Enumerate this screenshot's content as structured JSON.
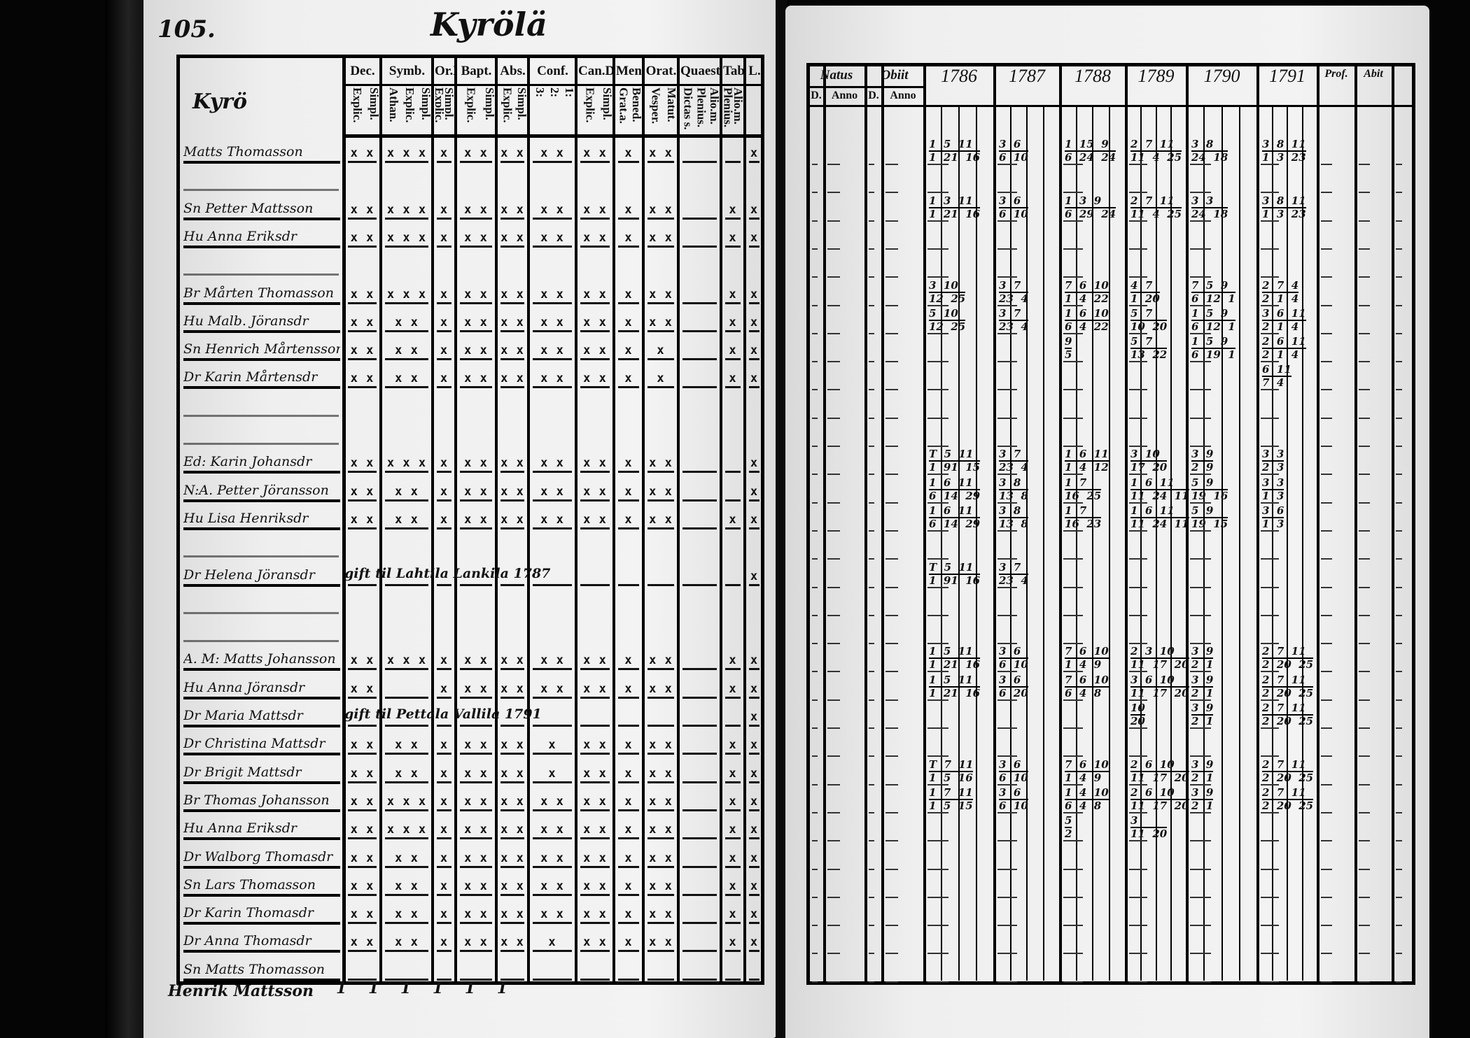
{
  "left_page": {
    "page_number": "105.",
    "title": "Kyrölä",
    "section_label": "Kyrö",
    "columns": [
      {
        "head": "Dec.",
        "sub": [
          "Explic.",
          "Simpl."
        ]
      },
      {
        "head": "Symb.",
        "sub": [
          "Athan.",
          "Explic.",
          "Simpl."
        ]
      },
      {
        "head": "Or.D",
        "sub": [
          "Explic.",
          "Simpl."
        ]
      },
      {
        "head": "Bapt.",
        "sub": [
          "Explic.",
          "Simpl."
        ]
      },
      {
        "head": "Abs.",
        "sub": [
          "Explic.",
          "Simpl."
        ]
      },
      {
        "head": "Conf.",
        "sub": [
          "3:",
          "2:",
          "1:"
        ]
      },
      {
        "head": "Can.D",
        "sub": [
          "Explic.",
          "Simpl."
        ]
      },
      {
        "head": "Mens.",
        "sub": [
          "Grat.a.",
          "Bened."
        ]
      },
      {
        "head": "Orat.",
        "sub": [
          "Vesper.",
          "Matut."
        ]
      },
      {
        "head": "Quaest.",
        "sub": [
          "Dictas s.",
          "Plenius.",
          "Alio.m."
        ]
      },
      {
        "head": "Tabe.",
        "sub": [
          "Plenius.",
          "Alio.m."
        ]
      },
      {
        "head": "L.",
        "sub": [
          ""
        ]
      }
    ],
    "rows": [
      {
        "row": 0,
        "name": "Matts Thomasson",
        "marks": "x x|x x x|x x|x x|x x|x x x|x x|x x|x x|||x"
      },
      {
        "row": 2,
        "name": "Sn Petter Mattsson",
        "marks": "x x|x x x|x x|x x|x x|x x x|x x|x x|x x||x|x"
      },
      {
        "row": 3,
        "name": "Hu Anna Eriksdr",
        "marks": "x x|x x x|x x|x x|x x|x x x|x x|x x|x x||x|x"
      },
      {
        "row": 5,
        "name": "Br Mårten Thomasson",
        "marks": "x x|x x x|x x|x x|x x|x x x|x x|x x|x x||x|x"
      },
      {
        "row": 6,
        "name": "Hu Malb. Jöransdr",
        "marks": "x x|x x|x x|x x|x x|x x|x x|x x|x x||x|x"
      },
      {
        "row": 7,
        "name": "Sn Henrich Mårtensson",
        "marks": "x x|x x|x x|x x|x x|x x x|x x|x x|x||x|x"
      },
      {
        "row": 8,
        "name": "Dr Karin Mårtensdr",
        "marks": "x x|x x|x x|x x|x x|x x x|x x|x x|x||x|x"
      },
      {
        "row": 11,
        "name": "Ed: Karin Johansdr",
        "marks": "x x|x x x|x x|x x|x x|x x x|x x|x x|x x|||x"
      },
      {
        "row": 12,
        "name": "N:A. Petter Jöransson",
        "marks": "x x|x x|x x|x x|x x|x x x|x x|x x|x x|||x"
      },
      {
        "row": 13,
        "name": "Hu Lisa Henriksdr",
        "marks": "x x|x x|x x|x x|x x|x x x|x x|x x|x x||x|x"
      },
      {
        "row": 15,
        "name": "Dr Helena Jöransdr",
        "marks": "|||||||||||x",
        "note": "gift til Lahtila Lankila 1787"
      },
      {
        "row": 18,
        "name": "A. M: Matts Johansson",
        "marks": "x x|x x x|x x|x x|x x|x x x|x x|x x|x x||x|x"
      },
      {
        "row": 19,
        "name": "Hu Anna Jöransdr",
        "marks": "x x||x x|x x|x x|x x x|x x|x x|x x||x|x"
      },
      {
        "row": 20,
        "name": "Dr Maria Mattsdr",
        "marks": "|||||||||||x",
        "note": "gift til Pettala Vallila 1791"
      },
      {
        "row": 21,
        "name": "Dr Christina Mattsdr",
        "marks": "x x|x x|x x|x x|x x|x|x x|x x|x x||x|x"
      },
      {
        "row": 22,
        "name": "Dr Brigit Mattsdr",
        "marks": "x x|x x|x x|x x|x x|x|x x|x x|x x||x|x"
      },
      {
        "row": 23,
        "name": "Br Thomas Johansson",
        "marks": "x x|x x x|x x|x x|x x|x x x|x x|x x|x x||x|x"
      },
      {
        "row": 24,
        "name": "Hu Anna Eriksdr",
        "marks": "x x|x x x|x x|x x|x x|x x x|x x|x x|x x||x|x"
      },
      {
        "row": 25,
        "name": "Dr Walborg Thomasdr",
        "marks": "x x|x x|x x|x x|x x|x x|x x|x x|x x||x|x"
      },
      {
        "row": 26,
        "name": "Sn Lars Thomasson",
        "marks": "x x|x x|x x|x x|x x|x x|x x|x x|x x||x|x"
      },
      {
        "row": 27,
        "name": "Dr Karin Thomasdr",
        "marks": "x x|x x|x x|x x|x x|x x x|x x|x x|x x||x|x"
      },
      {
        "row": 28,
        "name": "Dr Anna Thomasdr",
        "marks": "x x|x x|x x|x x|x x|x|x x|x x|x x||x|x"
      },
      {
        "row": 29,
        "name": "Sn Matts Thomasson",
        "marks": "|||||||||||"
      }
    ],
    "footer_name": "Henrik Mattsson",
    "footer_marks": "1    1    1    1    1    1"
  },
  "right_page": {
    "headers": {
      "natus": "Natus",
      "obiit": "Obiit",
      "d": "D.",
      "anno": "Anno",
      "years": [
        "1786",
        "1787",
        "1788",
        "1789",
        "1790",
        "1791"
      ],
      "prof": "Prof.",
      "abit": "Abit"
    },
    "rows": [
      {
        "row": 0,
        "cells": [
          "1 5 11\n1 21 16",
          "3 6\n6 10",
          "1 15 9\n6 24 24",
          "2 7 11\n11 4 25",
          "3 8\n24 18",
          "3 8 11\n1 3 23"
        ]
      },
      {
        "row": 2,
        "cells": [
          "1 3 11\n1 21 16",
          "3 6\n6 10",
          "1 3 9\n6 29 24",
          "2 7 11\n11 4 25",
          "3 3\n24 18",
          "3 8 11\n1 3 23"
        ]
      },
      {
        "row": 5,
        "cells": [
          "3 10\n12 25",
          "3 7\n23 4",
          "7 6 10\n1 4 22",
          "4 7\n1 20",
          "7 5 9\n6 12 1",
          "2 7 4\n2 1 4"
        ]
      },
      {
        "row": 6,
        "cells": [
          "5 10\n12 25",
          "3 7\n23 4",
          "1 6 10\n6 4 22",
          "5 7\n10 20",
          "1 5 9\n6 12 1",
          "3 6 11\n2 1 4"
        ]
      },
      {
        "row": 7,
        "cells": [
          "",
          "",
          "9\n5",
          "5 7\n13 22",
          "1 5 9\n6 19 1",
          "2 6 11\n2 1 4"
        ]
      },
      {
        "row": 8,
        "cells": [
          "",
          "",
          "",
          "",
          "",
          "6 11\n7 4"
        ]
      },
      {
        "row": 11,
        "cells": [
          "T 5 11\n1 91 15",
          "3 7\n23 4",
          "1 6 11\n1 4 12",
          "3 10\n17 20",
          "3 9\n2 9",
          "3 3\n2 3"
        ]
      },
      {
        "row": 12,
        "cells": [
          "1 6 11\n6 14 29",
          "3 8\n13 8",
          "1 7\n16 25",
          "1 6 11\n11 24 11",
          "5 9\n19 16",
          "3 3\n1 3"
        ]
      },
      {
        "row": 13,
        "cells": [
          "1 6 11\n6 14 29",
          "3 8\n13 8",
          "1 7\n16 23",
          "1 6 11\n11 24 11",
          "5 9\n19 15",
          "3 6\n1 3"
        ]
      },
      {
        "row": 15,
        "cells": [
          "T 5 11\n1 91 16",
          "3 7\n23 4",
          "",
          "",
          "",
          ""
        ]
      },
      {
        "row": 18,
        "cells": [
          "1 5 11\n1 21 16",
          "3 6\n6 10",
          "7 6 10\n1 4 9",
          "2 3 10\n11 17 20",
          "3 9\n2 1",
          "2 7 11\n2 20 25"
        ]
      },
      {
        "row": 19,
        "cells": [
          "1 5 11\n1 21 16",
          "3 6\n6 20",
          "7 6 10\n6 4 8",
          "3 6 10\n11 17 20",
          "3 9\n2 1",
          "2 7 11\n2 20 25"
        ]
      },
      {
        "row": 20,
        "cells": [
          "",
          "",
          "",
          "10\n20",
          "3 9\n2 1",
          "2 7 11\n2 20 25"
        ]
      },
      {
        "row": 22,
        "cells": [
          "T 7 11\n1 5 16",
          "3 6\n6 10",
          "7 6 10\n1 4 9",
          "2 6 10\n11 17 20",
          "3 9\n2 1",
          "2 7 11\n2 20 25"
        ]
      },
      {
        "row": 23,
        "cells": [
          "1 7 11\n1 5 15",
          "3 6\n6 10",
          "1 4 10\n6 4 8",
          "2 6 10\n11 17 20",
          "3 9\n2 1",
          "2 7 11\n2 20 25"
        ]
      },
      {
        "row": 24,
        "cells": [
          "",
          "",
          "5\n2",
          "3\n11 20",
          "",
          ""
        ]
      }
    ]
  }
}
